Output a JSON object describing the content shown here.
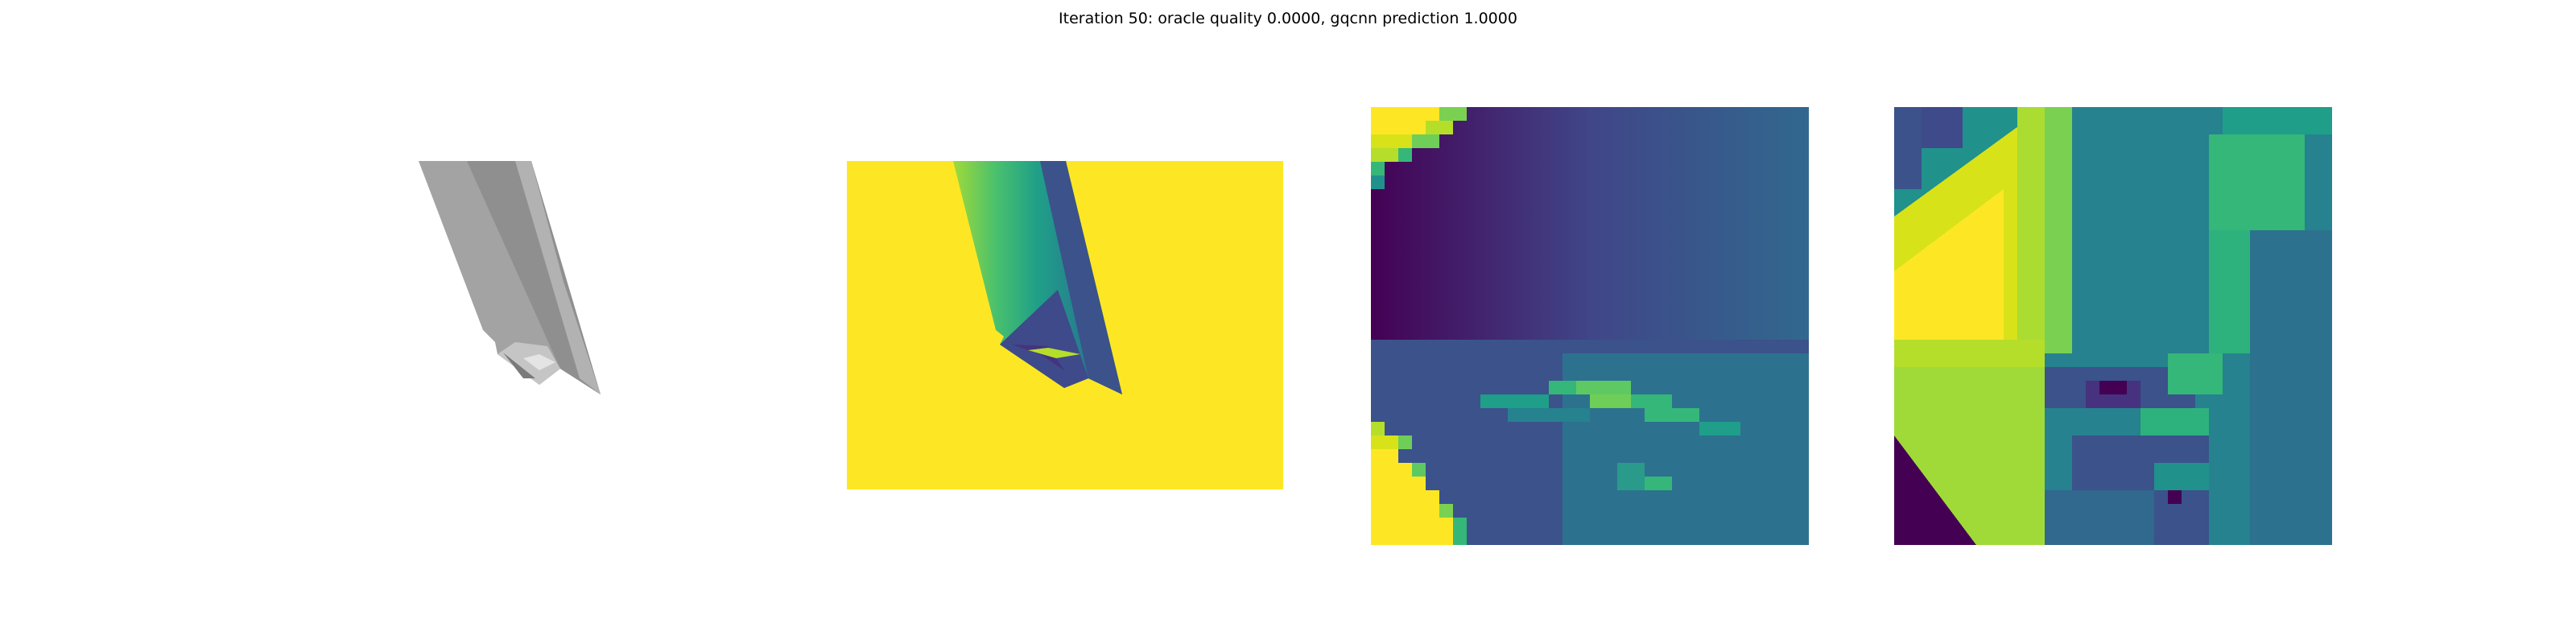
{
  "figure": {
    "title": "Iteration 50: oracle quality 0.0000, gqcnn prediction 1.0000"
  },
  "panels": [
    {
      "name": "rendered-object",
      "kind": "grayscale render"
    },
    {
      "name": "depth-image",
      "kind": "viridis depth"
    },
    {
      "name": "depth-crop",
      "kind": "viridis crop"
    },
    {
      "name": "feature-crop",
      "kind": "viridis crop"
    }
  ],
  "colors": {
    "viridis_yellow": "#fde725",
    "viridis_green": "#35b779",
    "viridis_teal": "#21918c",
    "viridis_blue": "#3b528b",
    "viridis_purple": "#440154",
    "object_gray": "#9a9a9a"
  }
}
